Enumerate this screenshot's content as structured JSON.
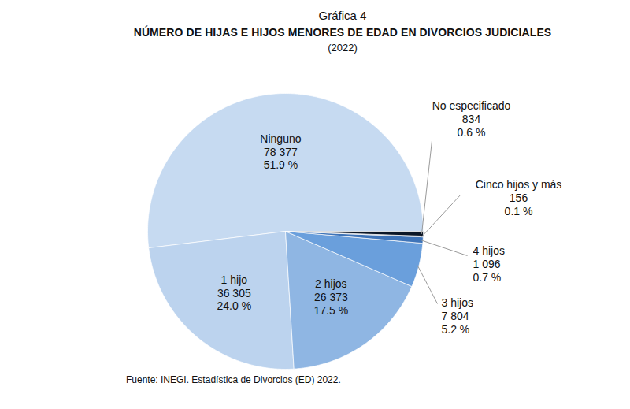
{
  "chart_data": {
    "type": "pie",
    "figure_label": "Gráfica 4",
    "title": "NÚMERO DE HIJAS E HIJOS MENORES DE EDAD EN DIVORCIOS JUDICIALES",
    "subtitle": "(2022)",
    "caption": "Fuente: INEGI. Estadística de Divorcios (ED) 2022.",
    "categories": [
      "Ninguno",
      "1 hijo",
      "2 hijos",
      "3 hijos",
      "4 hijos",
      "Cinco hijos y más",
      "No especificado"
    ],
    "values": [
      78377,
      36305,
      26373,
      7804,
      1096,
      156,
      834
    ],
    "value_labels": [
      "78 377",
      "36 305",
      "26 373",
      "7 804",
      "1 096",
      "156",
      "834"
    ],
    "percentages": [
      51.9,
      24.0,
      17.5,
      5.2,
      0.7,
      0.1,
      0.6
    ],
    "percentage_labels": [
      "51.9 %",
      "24.0 %",
      "17.5 %",
      "5.2 %",
      "0.7 %",
      "0.1 %",
      "0.6 %"
    ],
    "colors": [
      "#c6daf1",
      "#bcd3ee",
      "#8fb6e3",
      "#6a9fdc",
      "#3f74b8",
      "#1d3a66",
      "#0b1626"
    ],
    "data_labels": true
  }
}
